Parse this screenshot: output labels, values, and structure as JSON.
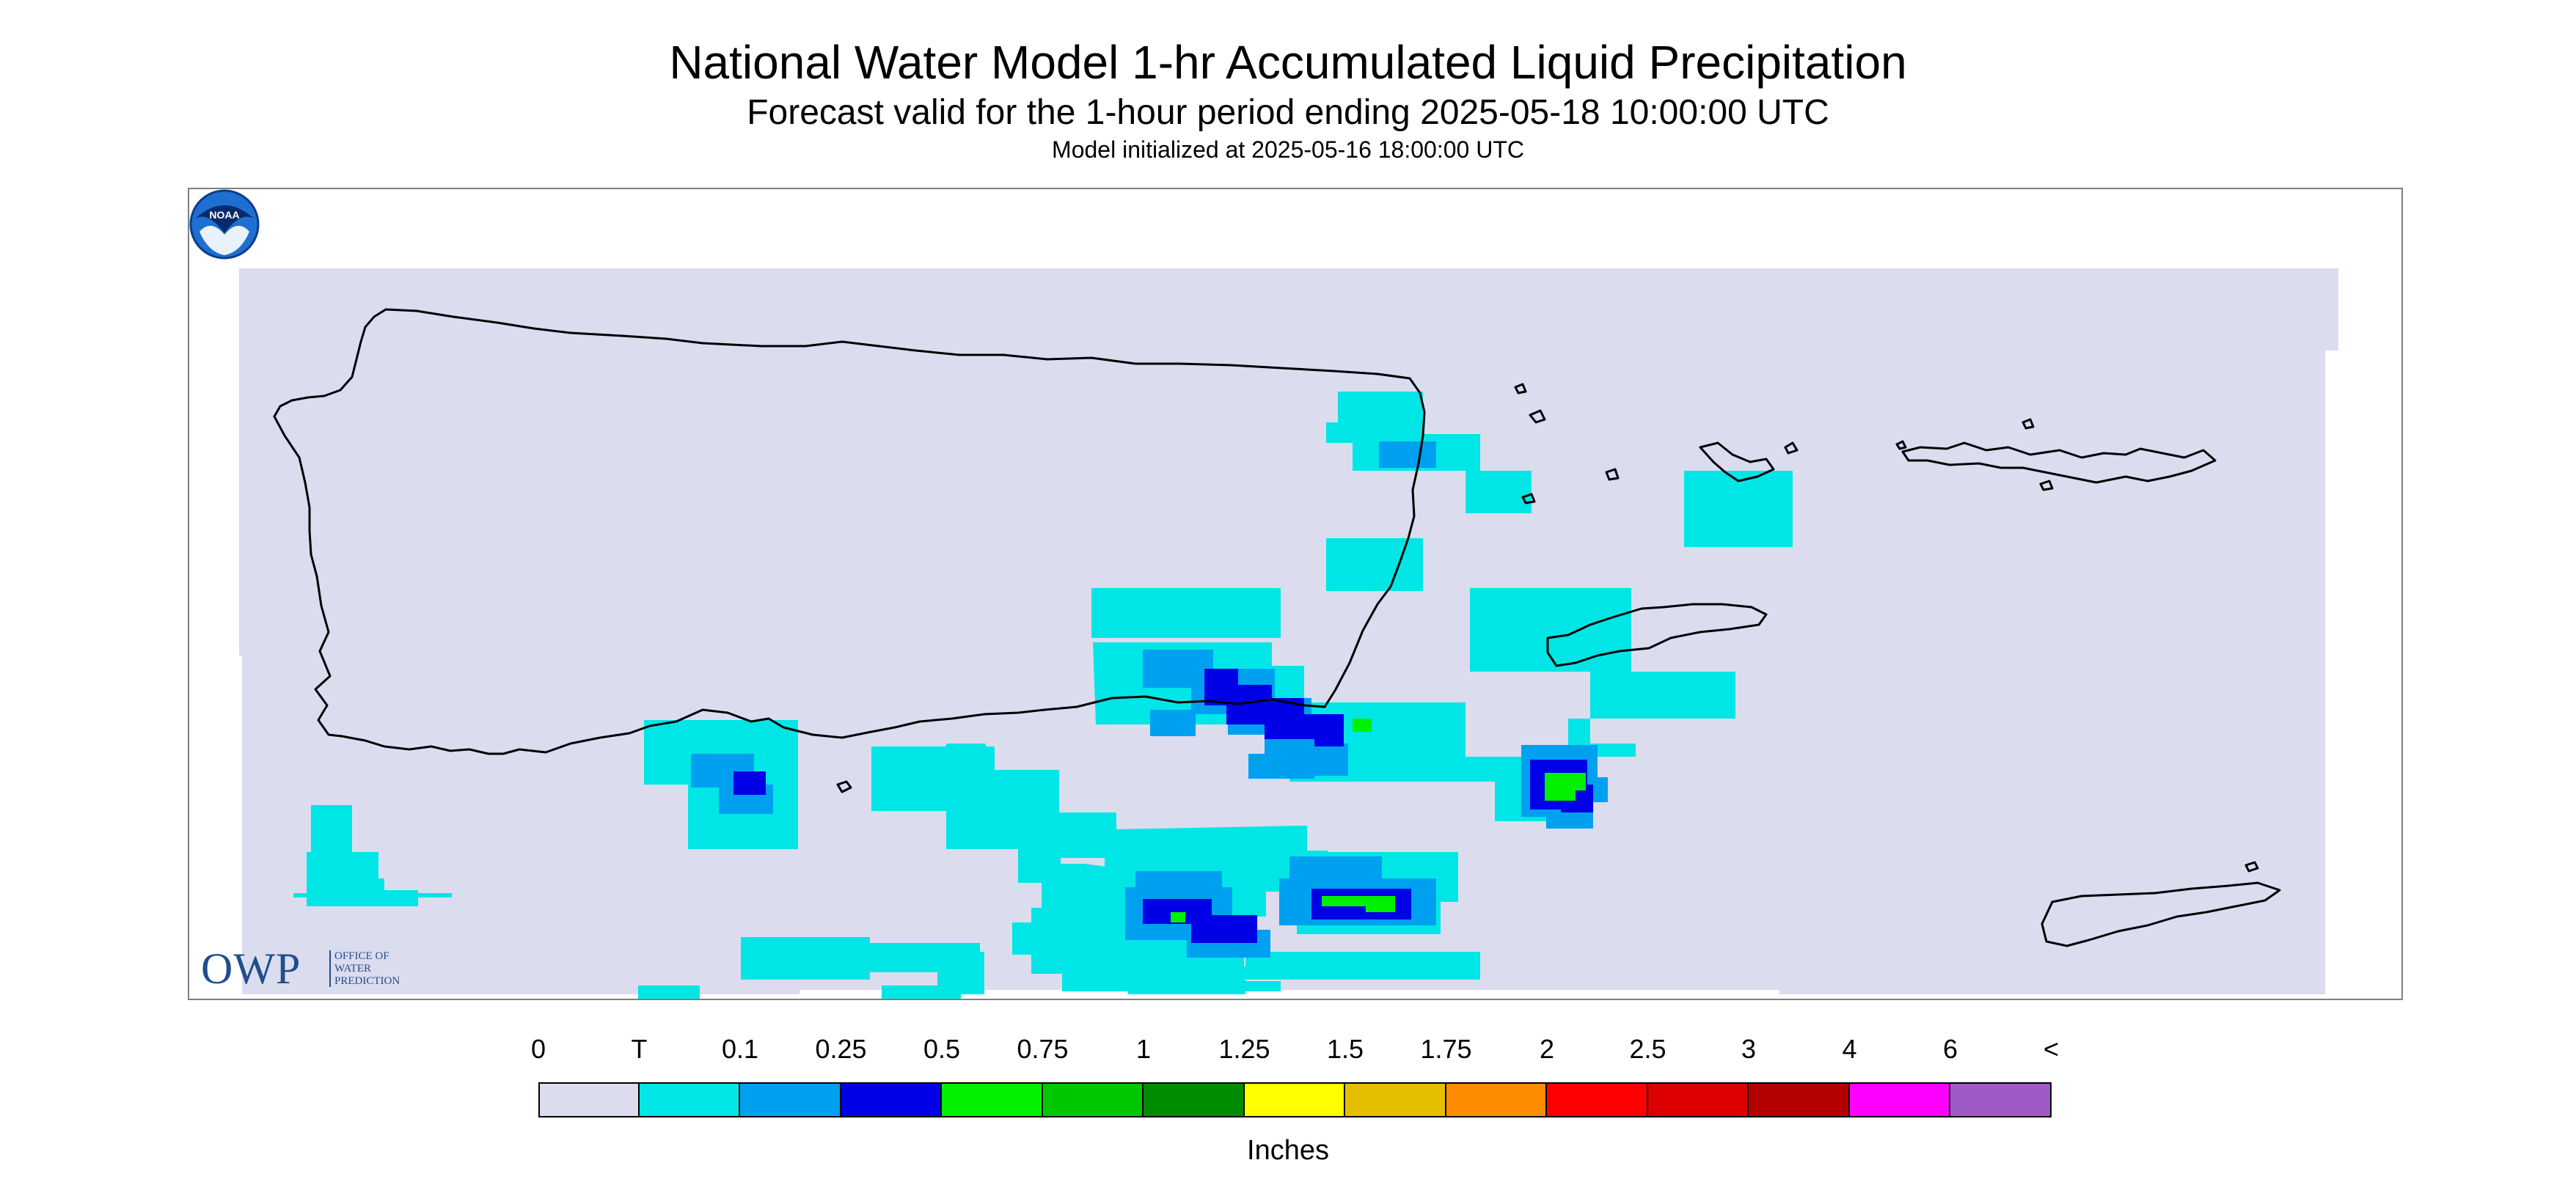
{
  "header": {
    "title": "National Water Model 1-hr Accumulated Liquid Precipitation",
    "subtitle": "Forecast valid for the 1-hour period ending 2025-05-18 10:00:00 UTC",
    "init_note": "Model initialized at 2025-05-16 18:00:00 UTC"
  },
  "logos": {
    "owp_letters": "OWP",
    "owp_subtitle": "OFFICE OF\nWATER\nPREDICTION",
    "noaa_text": "NOAA"
  },
  "legend": {
    "labels": [
      "0",
      "T",
      "0.1",
      "0.25",
      "0.5",
      "0.75",
      "1",
      "1.25",
      "1.5",
      "1.75",
      "2",
      "2.5",
      "3",
      "4",
      "6",
      "<"
    ],
    "colors": [
      "#dcdcef",
      "#00e6e6",
      "#00a0f0",
      "#0000e6",
      "#00f000",
      "#00c800",
      "#008c00",
      "#ffff00",
      "#e6be00",
      "#ff8c00",
      "#ff0000",
      "#dc0000",
      "#b40000",
      "#ff00ff",
      "#a05ac8"
    ],
    "units": "Inches"
  },
  "map": {
    "background_color": "#dcdcef",
    "coastline_color": "#000000"
  }
}
